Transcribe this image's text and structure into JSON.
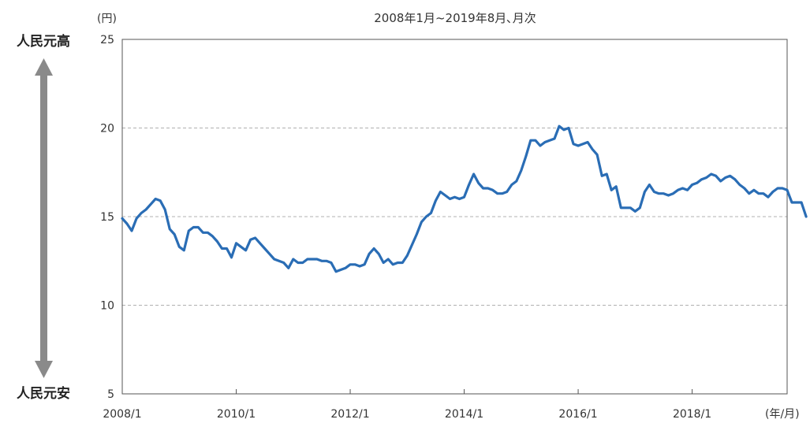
{
  "chart_data": {
    "type": "line",
    "title": "2008年1月~2019年8月､月次",
    "ylabel": "(円)",
    "xlabel": "(年/月)",
    "ylim": [
      5,
      25
    ],
    "yticks": [
      5,
      10,
      15,
      20,
      25
    ],
    "xticks": [
      "2008/1",
      "2010/1",
      "2012/1",
      "2014/1",
      "2016/1",
      "2018/1"
    ],
    "grid": "horizontal-dashed",
    "side_labels": {
      "top": "人民元高",
      "bottom": "人民元安"
    },
    "colors": {
      "line": "#2a6db5",
      "grid": "#b0b0b0",
      "axis": "#555555",
      "arrow": "#8a8a8a"
    },
    "series": [
      {
        "x_start": "2008/1",
        "frequency": "monthly",
        "values": [
          14.9,
          14.6,
          14.2,
          14.9,
          15.2,
          15.4,
          15.7,
          16.0,
          15.9,
          15.4,
          14.3,
          14.0,
          13.3,
          13.1,
          14.2,
          14.4,
          14.4,
          14.1,
          14.1,
          13.9,
          13.6,
          13.2,
          13.2,
          12.7,
          13.5,
          13.3,
          13.1,
          13.7,
          13.8,
          13.5,
          13.2,
          12.9,
          12.6,
          12.5,
          12.4,
          12.1,
          12.6,
          12.4,
          12.4,
          12.6,
          12.6,
          12.6,
          12.5,
          12.5,
          12.4,
          11.9,
          12.0,
          12.1,
          12.3,
          12.3,
          12.2,
          12.3,
          12.9,
          13.2,
          12.9,
          12.4,
          12.6,
          12.3,
          12.4,
          12.4,
          12.8,
          13.4,
          14.0,
          14.7,
          15.0,
          15.2,
          15.9,
          16.4,
          16.2,
          16.0,
          16.1,
          16.0,
          16.1,
          16.8,
          17.4,
          16.9,
          16.6,
          16.6,
          16.5,
          16.3,
          16.3,
          16.4,
          16.8,
          17.0,
          17.6,
          18.4,
          19.3,
          19.3,
          19.0,
          19.2,
          19.3,
          19.4,
          20.1,
          19.9,
          20.0,
          19.1,
          19.0,
          19.1,
          19.2,
          18.8,
          18.5,
          17.3,
          17.4,
          16.5,
          16.7,
          15.5,
          15.5,
          15.5,
          15.3,
          15.5,
          16.4,
          16.8,
          16.4,
          16.3,
          16.3,
          16.2,
          16.3,
          16.5,
          16.6,
          16.5,
          16.8,
          16.9,
          17.1,
          17.2,
          17.4,
          17.3,
          17.0,
          17.2,
          17.3,
          17.1,
          16.8,
          16.6,
          16.3,
          16.5,
          16.3,
          16.3,
          16.1,
          16.4,
          16.6,
          16.6,
          16.5,
          15.8,
          15.8,
          15.8,
          15.0
        ]
      }
    ]
  }
}
